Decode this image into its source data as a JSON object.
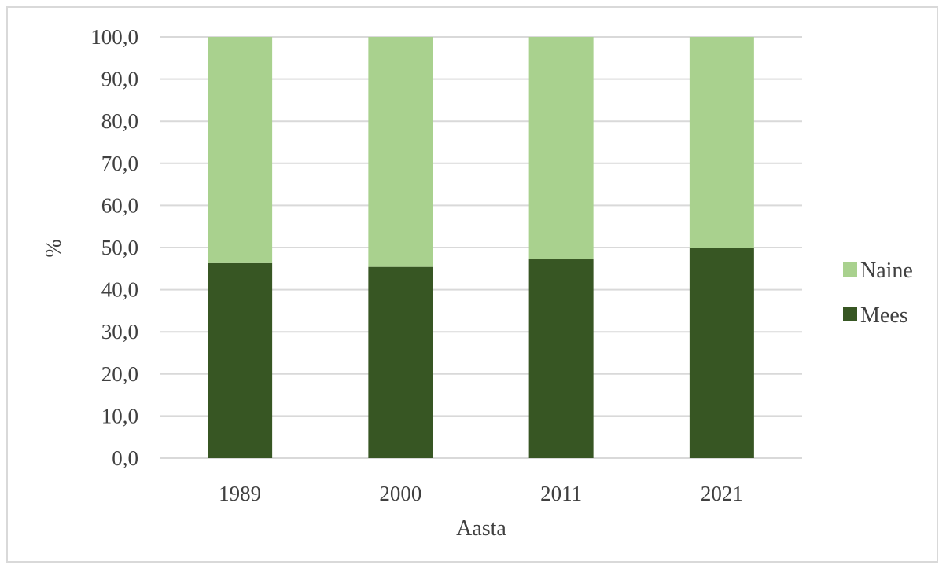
{
  "chart_data": {
    "type": "bar",
    "stacked": true,
    "categories": [
      "1989",
      "2000",
      "2011",
      "2021"
    ],
    "series": [
      {
        "name": "Mees",
        "values": [
          46.3,
          45.4,
          47.2,
          49.9
        ],
        "color": "#375623"
      },
      {
        "name": "Naine",
        "values": [
          53.7,
          54.6,
          52.8,
          50.1
        ],
        "color": "#a9d18e"
      }
    ],
    "title": "",
    "xlabel": "Aasta",
    "ylabel": "%",
    "ylim": [
      0,
      100
    ],
    "ytick_values": [
      0,
      10,
      20,
      30,
      40,
      50,
      60,
      70,
      80,
      90,
      100
    ],
    "yticks": [
      "0,0",
      "10,0",
      "20,0",
      "30,0",
      "40,0",
      "50,0",
      "60,0",
      "70,0",
      "80,0",
      "90,0",
      "100,0"
    ],
    "grid": true,
    "gridline_color": "#d9d9d9",
    "legend_position": "right",
    "legend_order": [
      "Naine",
      "Mees"
    ]
  }
}
